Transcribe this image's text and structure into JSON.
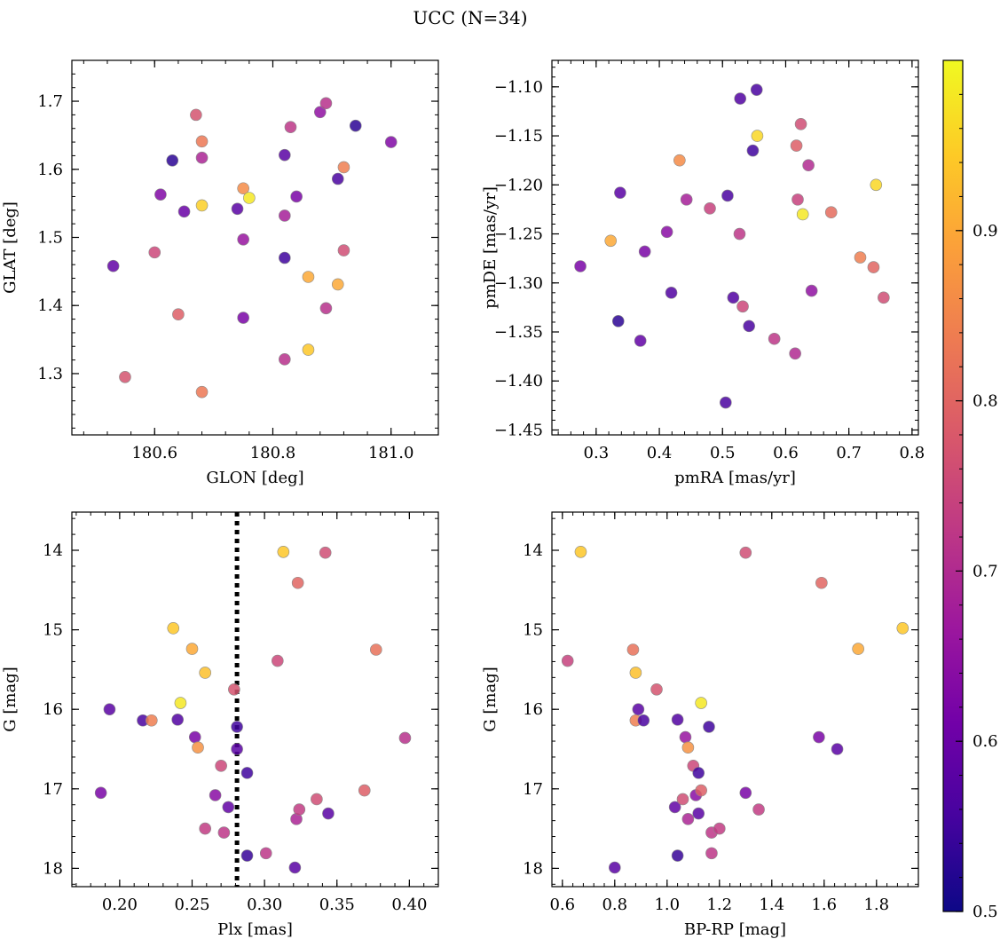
{
  "title": "UCC (N=34)",
  "colorbar": {
    "range": [
      0.5,
      1.0
    ],
    "ticks": [
      0.5,
      0.6,
      0.7,
      0.8,
      0.9
    ],
    "tick_labels": [
      "0.5",
      "0.6",
      "0.7",
      "0.8",
      "0.9"
    ],
    "colormap": "plasma",
    "colormap_stops": [
      "#0d0887",
      "#46039f",
      "#7201a8",
      "#9c179e",
      "#bd3786",
      "#d8576b",
      "#ed7953",
      "#fb9f3a",
      "#fdca26",
      "#f0f921"
    ]
  },
  "chart_data": [
    {
      "type": "scatter",
      "xlabel": "GLON [deg]",
      "ylabel": "GLAT [deg]",
      "xlim": [
        180.46,
        181.08
      ],
      "ylim": [
        1.21,
        1.76
      ],
      "xticks": [
        180.6,
        180.8,
        181.0
      ],
      "xtick_labels": [
        "180.6",
        "180.8",
        "181.0"
      ],
      "yticks": [
        1.3,
        1.4,
        1.5,
        1.6,
        1.7
      ],
      "ytick_labels": [
        "1.3",
        "1.4",
        "1.5",
        "1.6",
        "1.7"
      ],
      "points": [
        {
          "x": 180.53,
          "y": 1.458,
          "c": 0.59
        },
        {
          "x": 180.55,
          "y": 1.295,
          "c": 0.77
        },
        {
          "x": 180.6,
          "y": 1.478,
          "c": 0.75
        },
        {
          "x": 180.61,
          "y": 1.563,
          "c": 0.63
        },
        {
          "x": 180.63,
          "y": 1.613,
          "c": 0.53
        },
        {
          "x": 180.64,
          "y": 1.387,
          "c": 0.79
        },
        {
          "x": 180.65,
          "y": 1.538,
          "c": 0.6
        },
        {
          "x": 180.67,
          "y": 1.68,
          "c": 0.77
        },
        {
          "x": 180.68,
          "y": 1.547,
          "c": 0.95
        },
        {
          "x": 180.68,
          "y": 1.641,
          "c": 0.83
        },
        {
          "x": 180.68,
          "y": 1.617,
          "c": 0.69
        },
        {
          "x": 180.68,
          "y": 1.273,
          "c": 0.83
        },
        {
          "x": 180.74,
          "y": 1.542,
          "c": 0.58
        },
        {
          "x": 180.75,
          "y": 1.382,
          "c": 0.62
        },
        {
          "x": 180.75,
          "y": 1.572,
          "c": 0.86
        },
        {
          "x": 180.75,
          "y": 1.497,
          "c": 0.66
        },
        {
          "x": 180.76,
          "y": 1.558,
          "c": 0.98
        },
        {
          "x": 180.82,
          "y": 1.621,
          "c": 0.58
        },
        {
          "x": 180.82,
          "y": 1.47,
          "c": 0.55
        },
        {
          "x": 180.82,
          "y": 1.532,
          "c": 0.68
        },
        {
          "x": 180.82,
          "y": 1.321,
          "c": 0.71
        },
        {
          "x": 180.83,
          "y": 1.662,
          "c": 0.72
        },
        {
          "x": 180.84,
          "y": 1.56,
          "c": 0.62
        },
        {
          "x": 180.86,
          "y": 1.335,
          "c": 0.94
        },
        {
          "x": 180.86,
          "y": 1.442,
          "c": 0.9
        },
        {
          "x": 180.88,
          "y": 1.684,
          "c": 0.65
        },
        {
          "x": 180.89,
          "y": 1.697,
          "c": 0.71
        },
        {
          "x": 180.89,
          "y": 1.396,
          "c": 0.71
        },
        {
          "x": 180.91,
          "y": 1.586,
          "c": 0.56
        },
        {
          "x": 180.91,
          "y": 1.431,
          "c": 0.9
        },
        {
          "x": 180.92,
          "y": 1.603,
          "c": 0.84
        },
        {
          "x": 180.92,
          "y": 1.481,
          "c": 0.76
        },
        {
          "x": 180.94,
          "y": 1.664,
          "c": 0.53
        },
        {
          "x": 181.0,
          "y": 1.64,
          "c": 0.63
        }
      ]
    },
    {
      "type": "scatter",
      "xlabel": "pmRA [mas/yr]",
      "ylabel": "pmDE [mas/yr]",
      "xlim": [
        0.23,
        0.81
      ],
      "ylim": [
        -1.455,
        -1.073
      ],
      "xticks": [
        0.3,
        0.4,
        0.5,
        0.6,
        0.7,
        0.8
      ],
      "xtick_labels": [
        "0.3",
        "0.4",
        "0.5",
        "0.6",
        "0.7",
        "0.8"
      ],
      "yticks": [
        -1.45,
        -1.4,
        -1.35,
        -1.3,
        -1.25,
        -1.2,
        -1.15,
        -1.1
      ],
      "ytick_labels": [
        "−1.45",
        "−1.40",
        "−1.35",
        "−1.30",
        "−1.25",
        "−1.20",
        "−1.15",
        "−1.10"
      ],
      "points": [
        {
          "x": 0.275,
          "y": -1.283,
          "c": 0.62
        },
        {
          "x": 0.323,
          "y": -1.257,
          "c": 0.9
        },
        {
          "x": 0.335,
          "y": -1.339,
          "c": 0.53
        },
        {
          "x": 0.338,
          "y": -1.208,
          "c": 0.58
        },
        {
          "x": 0.37,
          "y": -1.359,
          "c": 0.59
        },
        {
          "x": 0.377,
          "y": -1.268,
          "c": 0.62
        },
        {
          "x": 0.412,
          "y": -1.248,
          "c": 0.64
        },
        {
          "x": 0.419,
          "y": -1.31,
          "c": 0.57
        },
        {
          "x": 0.432,
          "y": -1.175,
          "c": 0.86
        },
        {
          "x": 0.443,
          "y": -1.215,
          "c": 0.68
        },
        {
          "x": 0.48,
          "y": -1.224,
          "c": 0.74
        },
        {
          "x": 0.505,
          "y": -1.422,
          "c": 0.56
        },
        {
          "x": 0.508,
          "y": -1.211,
          "c": 0.56
        },
        {
          "x": 0.517,
          "y": -1.315,
          "c": 0.57
        },
        {
          "x": 0.527,
          "y": -1.25,
          "c": 0.72
        },
        {
          "x": 0.528,
          "y": -1.112,
          "c": 0.57
        },
        {
          "x": 0.532,
          "y": -1.324,
          "c": 0.75
        },
        {
          "x": 0.542,
          "y": -1.344,
          "c": 0.56
        },
        {
          "x": 0.548,
          "y": -1.165,
          "c": 0.55
        },
        {
          "x": 0.554,
          "y": -1.103,
          "c": 0.56
        },
        {
          "x": 0.555,
          "y": -1.15,
          "c": 0.96
        },
        {
          "x": 0.582,
          "y": -1.357,
          "c": 0.72
        },
        {
          "x": 0.615,
          "y": -1.372,
          "c": 0.7
        },
        {
          "x": 0.617,
          "y": -1.16,
          "c": 0.79
        },
        {
          "x": 0.619,
          "y": -1.215,
          "c": 0.74
        },
        {
          "x": 0.624,
          "y": -1.138,
          "c": 0.76
        },
        {
          "x": 0.627,
          "y": -1.23,
          "c": 0.98
        },
        {
          "x": 0.636,
          "y": -1.18,
          "c": 0.7
        },
        {
          "x": 0.641,
          "y": -1.308,
          "c": 0.65
        },
        {
          "x": 0.672,
          "y": -1.228,
          "c": 0.81
        },
        {
          "x": 0.718,
          "y": -1.274,
          "c": 0.84
        },
        {
          "x": 0.739,
          "y": -1.284,
          "c": 0.8
        },
        {
          "x": 0.743,
          "y": -1.2,
          "c": 0.96
        },
        {
          "x": 0.755,
          "y": -1.315,
          "c": 0.76
        }
      ]
    },
    {
      "type": "scatter",
      "xlabel": "Plx [mas]",
      "ylabel": "G [mag]",
      "xlim": [
        0.167,
        0.42
      ],
      "ylim": [
        18.23,
        13.52
      ],
      "xticks": [
        0.2,
        0.25,
        0.3,
        0.35,
        0.4
      ],
      "xtick_labels": [
        "0.20",
        "0.25",
        "0.30",
        "0.35",
        "0.40"
      ],
      "yticks": [
        14,
        15,
        16,
        17,
        18
      ],
      "ytick_labels": [
        "14",
        "15",
        "16",
        "17",
        "18"
      ],
      "vline": 0.281,
      "points": [
        {
          "x": 0.187,
          "y": 17.05,
          "c": 0.62
        },
        {
          "x": 0.193,
          "y": 16.0,
          "c": 0.58
        },
        {
          "x": 0.216,
          "y": 16.14,
          "c": 0.56
        },
        {
          "x": 0.222,
          "y": 16.14,
          "c": 0.84
        },
        {
          "x": 0.237,
          "y": 14.98,
          "c": 0.94
        },
        {
          "x": 0.24,
          "y": 16.13,
          "c": 0.57
        },
        {
          "x": 0.242,
          "y": 15.92,
          "c": 0.98
        },
        {
          "x": 0.25,
          "y": 15.24,
          "c": 0.9
        },
        {
          "x": 0.252,
          "y": 16.35,
          "c": 0.62
        },
        {
          "x": 0.254,
          "y": 16.48,
          "c": 0.87
        },
        {
          "x": 0.259,
          "y": 17.5,
          "c": 0.73
        },
        {
          "x": 0.259,
          "y": 15.54,
          "c": 0.93
        },
        {
          "x": 0.266,
          "y": 17.08,
          "c": 0.64
        },
        {
          "x": 0.27,
          "y": 16.71,
          "c": 0.75
        },
        {
          "x": 0.272,
          "y": 17.55,
          "c": 0.72
        },
        {
          "x": 0.275,
          "y": 17.23,
          "c": 0.59
        },
        {
          "x": 0.279,
          "y": 15.75,
          "c": 0.77
        },
        {
          "x": 0.281,
          "y": 16.22,
          "c": 0.55
        },
        {
          "x": 0.281,
          "y": 16.5,
          "c": 0.58
        },
        {
          "x": 0.288,
          "y": 16.8,
          "c": 0.55
        },
        {
          "x": 0.288,
          "y": 17.84,
          "c": 0.54
        },
        {
          "x": 0.301,
          "y": 17.81,
          "c": 0.72
        },
        {
          "x": 0.309,
          "y": 15.39,
          "c": 0.75
        },
        {
          "x": 0.313,
          "y": 14.02,
          "c": 0.94
        },
        {
          "x": 0.321,
          "y": 17.99,
          "c": 0.58
        },
        {
          "x": 0.322,
          "y": 17.38,
          "c": 0.69
        },
        {
          "x": 0.323,
          "y": 14.41,
          "c": 0.8
        },
        {
          "x": 0.324,
          "y": 17.26,
          "c": 0.73
        },
        {
          "x": 0.336,
          "y": 17.13,
          "c": 0.76
        },
        {
          "x": 0.342,
          "y": 14.03,
          "c": 0.76
        },
        {
          "x": 0.344,
          "y": 17.31,
          "c": 0.58
        },
        {
          "x": 0.369,
          "y": 17.02,
          "c": 0.79
        },
        {
          "x": 0.377,
          "y": 15.25,
          "c": 0.82
        },
        {
          "x": 0.397,
          "y": 16.36,
          "c": 0.71
        }
      ]
    },
    {
      "type": "scatter",
      "xlabel": "BP-RP [mag]",
      "ylabel": "G [mag]",
      "xlim": [
        0.56,
        1.96
      ],
      "ylim": [
        18.23,
        13.52
      ],
      "xticks": [
        0.6,
        0.8,
        1.0,
        1.2,
        1.4,
        1.6,
        1.8
      ],
      "xtick_labels": [
        "0.6",
        "0.8",
        "1.0",
        "1.2",
        "1.4",
        "1.6",
        "1.8"
      ],
      "yticks": [
        14,
        15,
        16,
        17,
        18
      ],
      "ytick_labels": [
        "14",
        "15",
        "16",
        "17",
        "18"
      ],
      "points": [
        {
          "x": 0.62,
          "y": 15.39,
          "c": 0.74
        },
        {
          "x": 0.67,
          "y": 14.02,
          "c": 0.94
        },
        {
          "x": 0.8,
          "y": 17.99,
          "c": 0.58
        },
        {
          "x": 0.87,
          "y": 15.25,
          "c": 0.82
        },
        {
          "x": 0.88,
          "y": 16.14,
          "c": 0.84
        },
        {
          "x": 0.88,
          "y": 15.54,
          "c": 0.93
        },
        {
          "x": 0.89,
          "y": 16.0,
          "c": 0.58
        },
        {
          "x": 0.91,
          "y": 16.14,
          "c": 0.56
        },
        {
          "x": 0.96,
          "y": 15.75,
          "c": 0.77
        },
        {
          "x": 1.03,
          "y": 17.23,
          "c": 0.59
        },
        {
          "x": 1.04,
          "y": 16.13,
          "c": 0.57
        },
        {
          "x": 1.04,
          "y": 17.84,
          "c": 0.54
        },
        {
          "x": 1.06,
          "y": 17.13,
          "c": 0.76
        },
        {
          "x": 1.07,
          "y": 16.35,
          "c": 0.66
        },
        {
          "x": 1.08,
          "y": 16.48,
          "c": 0.87
        },
        {
          "x": 1.08,
          "y": 17.38,
          "c": 0.69
        },
        {
          "x": 1.1,
          "y": 16.71,
          "c": 0.75
        },
        {
          "x": 1.11,
          "y": 17.08,
          "c": 0.64
        },
        {
          "x": 1.12,
          "y": 16.8,
          "c": 0.55
        },
        {
          "x": 1.12,
          "y": 17.31,
          "c": 0.58
        },
        {
          "x": 1.13,
          "y": 17.02,
          "c": 0.79
        },
        {
          "x": 1.13,
          "y": 15.92,
          "c": 0.98
        },
        {
          "x": 1.16,
          "y": 16.22,
          "c": 0.55
        },
        {
          "x": 1.17,
          "y": 17.81,
          "c": 0.72
        },
        {
          "x": 1.17,
          "y": 17.55,
          "c": 0.72
        },
        {
          "x": 1.2,
          "y": 17.5,
          "c": 0.73
        },
        {
          "x": 1.3,
          "y": 14.03,
          "c": 0.76
        },
        {
          "x": 1.3,
          "y": 17.05,
          "c": 0.62
        },
        {
          "x": 1.35,
          "y": 17.26,
          "c": 0.73
        },
        {
          "x": 1.58,
          "y": 16.35,
          "c": 0.62
        },
        {
          "x": 1.59,
          "y": 14.41,
          "c": 0.8
        },
        {
          "x": 1.65,
          "y": 16.5,
          "c": 0.58
        },
        {
          "x": 1.73,
          "y": 15.24,
          "c": 0.9
        },
        {
          "x": 1.9,
          "y": 14.98,
          "c": 0.94
        }
      ]
    }
  ]
}
